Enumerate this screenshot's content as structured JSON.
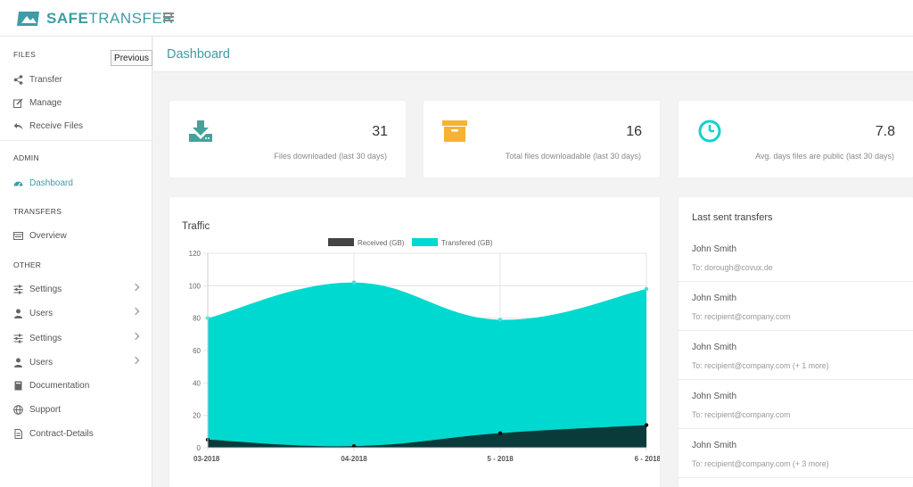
{
  "app": {
    "logo_bold": "SAFE",
    "logo_light": "TRANSFER",
    "brand_color": "#3e9ca4"
  },
  "tooltip": "Previous",
  "sidebar": {
    "sections": {
      "files": "FILES",
      "admin": "ADMIN",
      "transfers": "TRANSFERS",
      "other": "OTHER"
    },
    "items": [
      {
        "label": "Transfer",
        "icon": "share-icon"
      },
      {
        "label": "Manage",
        "icon": "edit-icon"
      },
      {
        "label": "Receive Files",
        "icon": "reply-icon"
      },
      {
        "label": "Dashboard",
        "icon": "dashboard-icon",
        "active": true
      },
      {
        "label": "Overview",
        "icon": "list-icon"
      },
      {
        "label": "Settings",
        "icon": "sliders-icon",
        "has_submenu": true
      },
      {
        "label": "Users",
        "icon": "user-icon",
        "has_submenu": true
      },
      {
        "label": "Settings",
        "icon": "sliders-icon",
        "has_submenu": true
      },
      {
        "label": "Users",
        "icon": "user-icon",
        "has_submenu": true
      },
      {
        "label": "Documentation",
        "icon": "book-icon"
      },
      {
        "label": "Support",
        "icon": "globe-icon"
      },
      {
        "label": "Contract-Details",
        "icon": "file-icon"
      }
    ]
  },
  "page": {
    "title": "Dashboard"
  },
  "stats": [
    {
      "value": "31",
      "label": "Files downloaded (last 30 days)",
      "icon": "download-icon",
      "color": "#43a39a"
    },
    {
      "value": "16",
      "label": "Total files downloadable (last 30 days)",
      "icon": "archive-icon",
      "color": "#f6b233"
    },
    {
      "value": "7.8",
      "label": "Avg. days files are public (last 30 days)",
      "icon": "clock-icon",
      "color": "#13d1cc"
    }
  ],
  "traffic": {
    "title": "Traffic"
  },
  "chart_data": {
    "type": "area",
    "categories": [
      "03-2018",
      "04-2018",
      "5 - 2018",
      "6 - 2018"
    ],
    "series": [
      {
        "name": "Received (GB)",
        "values": [
          5,
          1,
          9,
          14
        ],
        "color": "#0a3a3a",
        "legend_color": "#444444"
      },
      {
        "name": "Transfered (GB)",
        "values": [
          80,
          102,
          79,
          98
        ],
        "color": "#00d9d0"
      }
    ],
    "yticks": [
      "0",
      "20",
      "40",
      "60",
      "80",
      "100",
      "120"
    ],
    "ylim": [
      0,
      120
    ],
    "grid": true,
    "legend": "top-center"
  },
  "last_transfers": {
    "title": "Last sent transfers",
    "to_prefix": "To: ",
    "items": [
      {
        "name": "John Smith",
        "to": "dorough@covux.de"
      },
      {
        "name": "John Smith",
        "to": "recipient@company.com"
      },
      {
        "name": "John Smith",
        "to": "recipient@company.com (+ 1 more)"
      },
      {
        "name": "John Smith",
        "to": "recipient@company.com"
      },
      {
        "name": "John Smith",
        "to": "recipient@company.com (+ 3 more)"
      }
    ]
  }
}
